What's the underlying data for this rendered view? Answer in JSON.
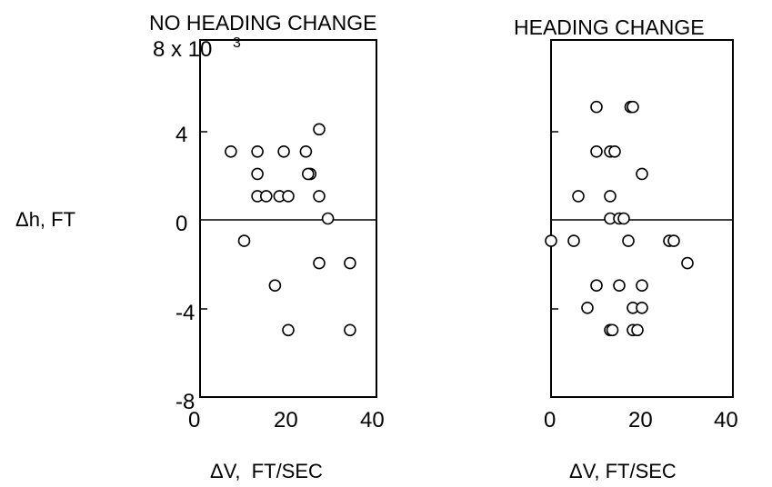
{
  "chart_data": [
    {
      "type": "scatter",
      "title": "NO HEADING CHANGE",
      "xlabel": "ΔV,  FT/SEC",
      "ylabel": "Δh, FT",
      "xlim": [
        0,
        40
      ],
      "ylim": [
        -8,
        8
      ],
      "x_ticks": [
        "0",
        "20",
        "40"
      ],
      "y_ticks": [
        "-8",
        "-4",
        "0",
        "4",
        "8 x 10"
      ],
      "y_scale_exponent": "3",
      "grid": false,
      "zero_line": true,
      "points": [
        {
          "x": 7,
          "y": 3
        },
        {
          "x": 13,
          "y": 3
        },
        {
          "x": 19,
          "y": 3
        },
        {
          "x": 24,
          "y": 3
        },
        {
          "x": 27,
          "y": 4
        },
        {
          "x": 13,
          "y": 2
        },
        {
          "x": 25,
          "y": 2
        },
        {
          "x": 24.5,
          "y": 2
        },
        {
          "x": 13,
          "y": 1
        },
        {
          "x": 15,
          "y": 1
        },
        {
          "x": 18,
          "y": 1
        },
        {
          "x": 20,
          "y": 1
        },
        {
          "x": 27,
          "y": 1
        },
        {
          "x": 29,
          "y": 0
        },
        {
          "x": 10,
          "y": -1
        },
        {
          "x": 27,
          "y": -2
        },
        {
          "x": 34,
          "y": -2
        },
        {
          "x": 17,
          "y": -3
        },
        {
          "x": 20,
          "y": -5
        },
        {
          "x": 34,
          "y": -5
        }
      ]
    },
    {
      "type": "scatter",
      "title": "HEADING CHANGE",
      "xlabel": "ΔV, FT/SEC",
      "ylabel": "",
      "xlim": [
        0,
        40
      ],
      "ylim": [
        -8,
        8
      ],
      "x_ticks": [
        "0",
        "20",
        "40"
      ],
      "y_ticks": [],
      "grid": false,
      "zero_line": true,
      "points": [
        {
          "x": 10,
          "y": 5
        },
        {
          "x": 17.5,
          "y": 5
        },
        {
          "x": 18,
          "y": 5
        },
        {
          "x": 10,
          "y": 3
        },
        {
          "x": 13,
          "y": 3
        },
        {
          "x": 14,
          "y": 3
        },
        {
          "x": 20,
          "y": 2
        },
        {
          "x": 6,
          "y": 1
        },
        {
          "x": 13,
          "y": 1
        },
        {
          "x": 13,
          "y": 0
        },
        {
          "x": 15,
          "y": 0
        },
        {
          "x": 16,
          "y": 0
        },
        {
          "x": 0,
          "y": -1
        },
        {
          "x": 5,
          "y": -1
        },
        {
          "x": 17,
          "y": -1
        },
        {
          "x": 26,
          "y": -1
        },
        {
          "x": 27,
          "y": -1
        },
        {
          "x": 30,
          "y": -2
        },
        {
          "x": 10,
          "y": -3
        },
        {
          "x": 15,
          "y": -3
        },
        {
          "x": 20,
          "y": -3
        },
        {
          "x": 8,
          "y": -4
        },
        {
          "x": 18,
          "y": -4
        },
        {
          "x": 20,
          "y": -4
        },
        {
          "x": 13,
          "y": -5
        },
        {
          "x": 13.5,
          "y": -5
        },
        {
          "x": 18,
          "y": -5
        },
        {
          "x": 19,
          "y": -5
        }
      ]
    }
  ]
}
